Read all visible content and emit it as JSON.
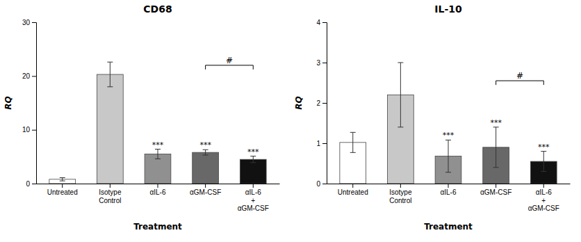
{
  "chart_data": [
    {
      "type": "bar",
      "title": "CD68",
      "categories": [
        "Untreated",
        "Isotype\nControl",
        "αIL-6",
        "αGM-CSF",
        "αIL-6\n+\nαGM-CSF"
      ],
      "values": [
        0.8,
        20.3,
        5.5,
        5.8,
        4.5
      ],
      "errors": [
        0.3,
        2.3,
        0.9,
        0.5,
        0.6
      ],
      "colors": [
        "#ffffff",
        "#c8c8c8",
        "#909090",
        "#686868",
        "#111111"
      ],
      "xlabel": "Treatment",
      "ylabel": "RQ",
      "ylim": [
        0,
        30
      ],
      "yticks": [
        0,
        10,
        20,
        30
      ],
      "sig_labels": [
        null,
        null,
        "***",
        "***",
        "***"
      ],
      "bracket": {
        "from": "αGM-CSF",
        "to": "αIL-6\n+\nαGM-CSF",
        "y": 22.0,
        "label": "#"
      },
      "grid": false
    },
    {
      "type": "bar",
      "title": "IL-10",
      "categories": [
        "Untreated",
        "Isotype\nControl",
        "αIL-6",
        "αGM-CSF",
        "αIL-6\n+\nαGM-CSF"
      ],
      "values": [
        1.02,
        2.2,
        0.68,
        0.9,
        0.55
      ],
      "errors": [
        0.25,
        0.8,
        0.4,
        0.5,
        0.25
      ],
      "colors": [
        "#ffffff",
        "#c8c8c8",
        "#909090",
        "#686868",
        "#111111"
      ],
      "xlabel": "Treatment",
      "ylabel": "RQ",
      "ylim": [
        0,
        4
      ],
      "yticks": [
        0,
        1,
        2,
        3,
        4
      ],
      "sig_labels": [
        null,
        null,
        "***",
        "***",
        "***"
      ],
      "bracket": {
        "from": "αGM-CSF",
        "to": "αIL-6\n+\nαGM-CSF",
        "y": 2.55,
        "label": "#"
      },
      "grid": false
    }
  ]
}
